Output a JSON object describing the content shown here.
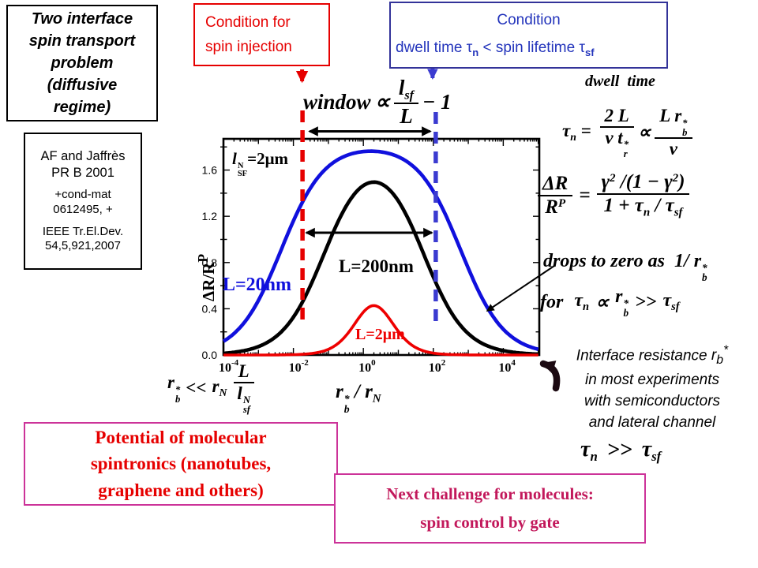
{
  "colors": {
    "red": "#e60000",
    "blue_text": "#2233bb",
    "blue_border": "#333399",
    "dashed_blue": "#3b3bd0",
    "magenta": "#cc3399",
    "crimson": "#c2185b",
    "dark": "#1c0a12"
  },
  "header": {
    "title_box": "Two interface\nspin transport\nproblem\n(diffusive\nregime)",
    "ref_lines": [
      "AF and Jaffrès",
      "PR B 2001",
      "+cond-mat",
      "0612495, +",
      "IEEE Tr.El.Dev.",
      "54,5,921,2007"
    ],
    "red_box": {
      "line1": "Condition for",
      "line2": "spin injection"
    },
    "blue_box": {
      "title": "Condition",
      "cond_pre": "dwell time ",
      "tau": "τ",
      "tau_sub": "n",
      "cond_mid": " < spin lifetime ",
      "tau2": "τ",
      "tau2_sub": "sf"
    }
  },
  "formulas": {
    "window": {
      "word": "window",
      "propto": "∝",
      "num": "l",
      "num_sub": "sf",
      "den": "L",
      "tail": "− 1"
    },
    "dwell_label": "dwell  time",
    "tau_eq": {
      "tau": "τ",
      "tau_sub": "n",
      "eq": " = ",
      "num1": "2 L",
      "den1": "v t",
      "den1_sup": "*",
      "den1_sub": "r",
      "propto": "∝",
      "num2": "L r",
      "num2_sup": "*",
      "num2_sub": "b",
      "den2": "v"
    },
    "dr_eq": {
      "lnum": "ΔR",
      "lden": "R",
      "lden_sup": "P",
      "eq": "=",
      "rnum_1": "γ",
      "rnum_sq1": "2",
      "rnum_2": " /(1 − ",
      "rnum_3": "γ",
      "rnum_sq2": "2",
      "rnum_4": ")",
      "rden_1": "1 + ",
      "rden_tau1": "τ",
      "rden_sub1": "n",
      "rden_2": " / ",
      "rden_tau2": "τ",
      "rden_sub2": "sf"
    },
    "drops": {
      "text": "drops to zero as  1/ ",
      "r": "r",
      "sup": "*",
      "sub": "b"
    },
    "for_line": {
      "f": "for ",
      "tau": "τ",
      "tau_sub": "n",
      "propto": "∝",
      "r": "r",
      "r_sup": "*",
      "r_sub": "b",
      "gg": ">>",
      "tau2": "τ",
      "tau2_sub": "sf"
    },
    "tau_gg": {
      "tau": "τ",
      "tau_sub": "n",
      "gg": ">>",
      "tau2": "τ",
      "tau2_sub": "sf"
    },
    "rb_cond": {
      "r": "r",
      "r_sup": "*",
      "r_sub": "b",
      "ll": "<<",
      "rn": "r",
      "rn_sub": "N",
      "num": "L",
      "den": "l",
      "den_sup": "N",
      "den_sub": "sf"
    },
    "xlabel": {
      "r": "r",
      "r_sup": "*",
      "r_sub": "b",
      "slash": " / ",
      "rn": "r",
      "rn_sub": "N"
    },
    "ylabel": {
      "base": "ΔR/R",
      "sup": "P"
    },
    "annot": {
      "base": "l",
      "sup": "N",
      "sub": "SF",
      "rest": "=2μm"
    }
  },
  "note": {
    "l1": "Interface resistance ",
    "l1r": "r",
    "l1sub": "b",
    "l1sup": "*",
    "l2": "in most experiments",
    "l3": "with semiconductors",
    "l4": "and lateral channel"
  },
  "footer": {
    "left_box": "Potential of molecular\nspintronics (nanotubes,\ngraphene and others)",
    "right_box_l1": "Next challenge for molecules:",
    "right_box_l2": "spin control by gate"
  },
  "chart_data": {
    "type": "line",
    "xscale": "log",
    "x_range_log": [
      -4,
      5.03
    ],
    "y_range": [
      0,
      1.87
    ],
    "x_tick_base": "10",
    "x_tick_exponents": [
      -4,
      -2,
      0,
      2,
      4
    ],
    "y_ticks": [
      "0.0",
      "0.4",
      "0.8",
      "1.2",
      "1.6"
    ],
    "y_tick_values": [
      0,
      0.4,
      0.8,
      1.2,
      1.6
    ],
    "y_minor_step": 0.2,
    "xlabel": "rb*/rN",
    "ylabel": "ΔR/R^P",
    "annotation": "l_SF^N=2μm",
    "grid": false,
    "legend_position": "inline-labels",
    "series": [
      {
        "label": "L=20nm",
        "color": "#1010dd",
        "peak": 1.78,
        "stroke_width": 4.6,
        "bell": {
          "amp": 1.82,
          "rise": -2.35,
          "fall": 2.78,
          "w": 0.62
        }
      },
      {
        "label": "L=200nm",
        "color": "#000000",
        "peak": 1.5,
        "stroke_width": 4.6,
        "bell": {
          "amp": 1.8,
          "rise": -1.1,
          "fall": 1.7,
          "w": 0.6
        }
      },
      {
        "label": "L=2μm",
        "color": "#ee0000",
        "peak": 0.42,
        "stroke_width": 3.6,
        "bell": {
          "amp": 0.8,
          "rise": -0.05,
          "fall": 0.65,
          "w": 0.35
        }
      }
    ],
    "guides": {
      "red_dashed_log_x": -1.74,
      "blue_dashed_log_x": 2.07
    }
  }
}
